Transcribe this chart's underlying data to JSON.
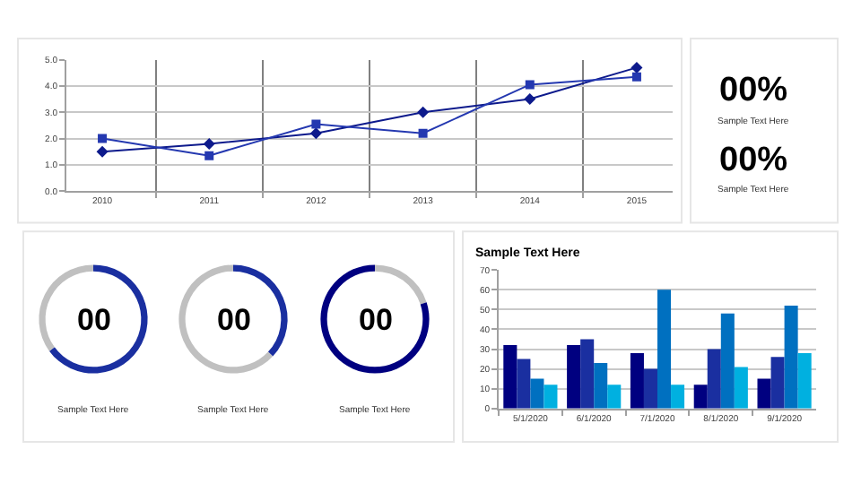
{
  "chart_data": [
    {
      "type": "line",
      "categories": [
        "2010",
        "2011",
        "2012",
        "2013",
        "2014",
        "2015"
      ],
      "series": [
        {
          "color": "#0d1a8c",
          "marker": "diamond",
          "values": [
            1.5,
            1.8,
            2.2,
            3.0,
            3.5,
            4.7
          ]
        },
        {
          "color": "#2438b0",
          "marker": "square",
          "values": [
            2.0,
            1.35,
            2.55,
            2.2,
            4.05,
            4.35
          ]
        }
      ],
      "ylim": [
        0,
        5
      ],
      "yticks": [
        {
          "value": 0,
          "label": "0.0"
        },
        {
          "value": 1,
          "label": "1.0"
        },
        {
          "value": 2,
          "label": "2.0"
        },
        {
          "value": 3,
          "label": "3.0"
        },
        {
          "value": 4,
          "label": "4.0"
        },
        {
          "value": 5,
          "label": "5.0"
        }
      ],
      "grid": true,
      "line_style": "solid"
    },
    {
      "type": "other",
      "annotations": [
        "00%",
        "Sample Text Here",
        "00%",
        "Sample Text Here"
      ]
    },
    {
      "type": "donut",
      "categories": [
        null,
        null
      ],
      "values": [
        65,
        35
      ],
      "colors": [
        "#1a2fa0",
        "#c0c0c0"
      ],
      "annotations": [
        "00",
        "Sample Text Here"
      ]
    },
    {
      "type": "donut",
      "categories": [
        null,
        null
      ],
      "values": [
        37,
        63
      ],
      "colors": [
        "#1a2fa0",
        "#c0c0c0"
      ],
      "annotations": [
        "00",
        "Sample Text Here"
      ]
    },
    {
      "type": "donut",
      "categories": [
        null,
        null
      ],
      "values": [
        20,
        80
      ],
      "colors": [
        "#c0c0c0",
        "#000080"
      ],
      "annotations": [
        "00",
        "Sample Text Here"
      ]
    },
    {
      "type": "bar",
      "title": "Sample Text Here",
      "categories": [
        "5/1/2020",
        "6/1/2020",
        "7/1/2020",
        "8/1/2020",
        "9/1/2020"
      ],
      "series": [
        {
          "color": "#000080",
          "values": [
            32,
            32,
            28,
            12,
            15
          ]
        },
        {
          "color": "#1a2fa0",
          "values": [
            25,
            35,
            20,
            30,
            26
          ]
        },
        {
          "color": "#0070c0",
          "values": [
            15,
            23,
            60,
            48,
            52
          ]
        },
        {
          "color": "#00b0e0",
          "values": [
            12,
            12,
            12,
            21,
            28
          ]
        }
      ],
      "ylim": [
        0,
        70
      ],
      "yticks": [
        0,
        10,
        20,
        30,
        40,
        50,
        60,
        70
      ],
      "grid": "y"
    }
  ]
}
